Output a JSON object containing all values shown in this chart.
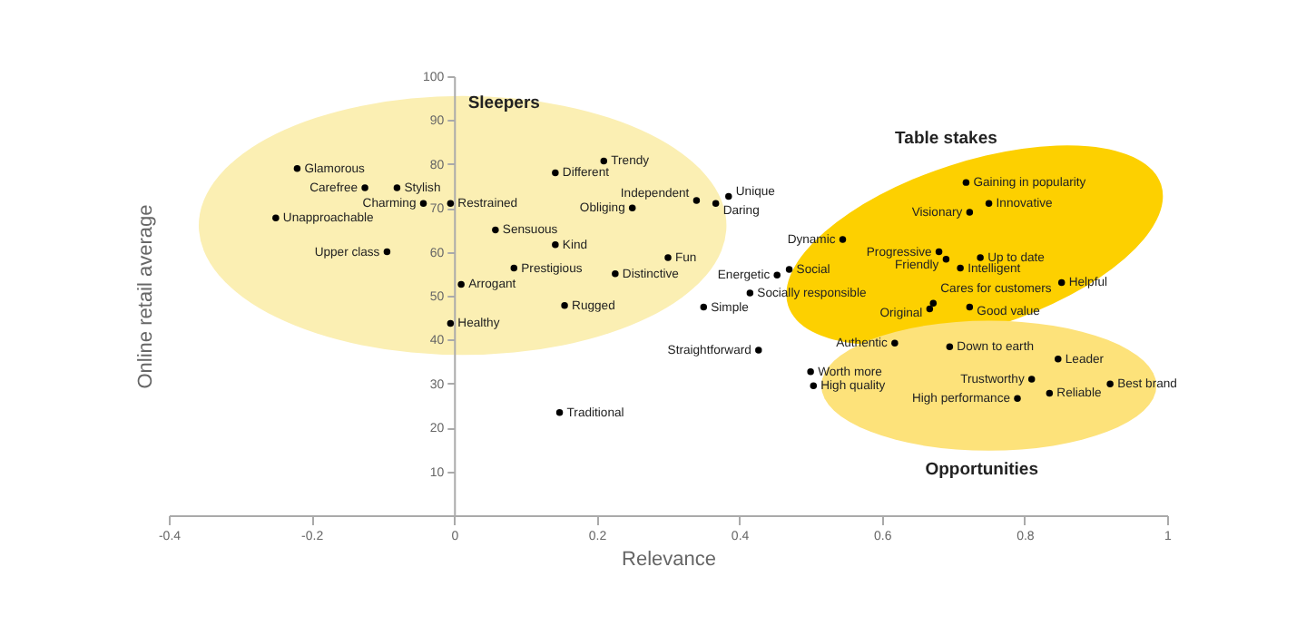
{
  "chart_data": {
    "type": "scatter",
    "xlabel": "Relevance",
    "ylabel": "Online retail average",
    "xlim": [
      -0.4,
      1
    ],
    "xticks": [
      -0.4,
      -0.2,
      0,
      0.2,
      0.4,
      0.6,
      0.8,
      1
    ],
    "ylim": [
      0,
      100
    ],
    "yticks": [
      10,
      20,
      30,
      40,
      50,
      60,
      70,
      80,
      90,
      100
    ],
    "grid": false,
    "marker": "circle",
    "legend": false,
    "series": [
      {
        "color": "#000000",
        "x": [
          -0.22,
          -0.125,
          -0.08,
          -0.043,
          -0.005,
          -0.25,
          -0.094,
          0.058,
          0.142,
          0.084,
          0.01,
          -0.005,
          0.155,
          0.142,
          0.21,
          0.34,
          0.385,
          0.367,
          0.25,
          0.3,
          0.226,
          0.35,
          0.453,
          0.47,
          0.415,
          0.427,
          0.148,
          0.545,
          0.718,
          0.75,
          0.723,
          0.68,
          0.69,
          0.738,
          0.71,
          0.852,
          0.672,
          0.667,
          0.723,
          0.618,
          0.695,
          0.847,
          0.81,
          0.92,
          0.835,
          0.79,
          0.5,
          0.504
        ],
        "values": [
          79,
          74.6,
          74.6,
          71,
          71,
          67.7,
          60,
          65,
          61.6,
          56.3,
          52.6,
          43.7,
          47.8,
          78,
          80.7,
          71.7,
          72.6,
          71,
          70,
          58.7,
          55,
          47.4,
          54.7,
          56,
          50.6,
          37.6,
          23.4,
          62.8,
          75.8,
          71,
          69,
          60,
          58.3,
          58.7,
          56.3,
          53,
          48.3,
          47,
          47.4,
          39.2,
          38.4,
          35.6,
          31,
          29.9,
          27.8,
          26.6,
          32.7,
          29.5
        ]
      }
    ],
    "annotations": [
      "Sleepers",
      "Table stakes",
      "Opportunities",
      {
        "text": "Glamorous",
        "x": -0.22,
        "y": 79
      },
      {
        "text": "Carefree",
        "x": -0.125,
        "y": 74.6
      },
      {
        "text": "Stylish",
        "x": -0.08,
        "y": 74.6
      },
      {
        "text": "Charming",
        "x": -0.043,
        "y": 71
      },
      {
        "text": "Restrained",
        "x": -0.005,
        "y": 71
      },
      {
        "text": "Unapproachable",
        "x": -0.25,
        "y": 67.7
      },
      {
        "text": "Upper class",
        "x": -0.094,
        "y": 60
      },
      {
        "text": "Sensuous",
        "x": 0.058,
        "y": 65
      },
      {
        "text": "Kind",
        "x": 0.142,
        "y": 61.6
      },
      {
        "text": "Prestigious",
        "x": 0.084,
        "y": 56.3
      },
      {
        "text": "Arrogant",
        "x": 0.01,
        "y": 52.6
      },
      {
        "text": "Healthy",
        "x": -0.005,
        "y": 43.7
      },
      {
        "text": "Rugged",
        "x": 0.155,
        "y": 47.8
      },
      {
        "text": "Different",
        "x": 0.142,
        "y": 78
      },
      {
        "text": "Trendy",
        "x": 0.21,
        "y": 80.7
      },
      {
        "text": "Independent",
        "x": 0.34,
        "y": 71.7
      },
      {
        "text": "Unique",
        "x": 0.385,
        "y": 72.6
      },
      {
        "text": "Daring",
        "x": 0.367,
        "y": 71
      },
      {
        "text": "Obliging",
        "x": 0.25,
        "y": 70
      },
      {
        "text": "Fun",
        "x": 0.3,
        "y": 58.7
      },
      {
        "text": "Distinctive",
        "x": 0.226,
        "y": 55
      },
      {
        "text": "Simple",
        "x": 0.35,
        "y": 47.4
      },
      {
        "text": "Energetic",
        "x": 0.453,
        "y": 54.7
      },
      {
        "text": "Social",
        "x": 0.47,
        "y": 56
      },
      {
        "text": "Socially responsible",
        "x": 0.415,
        "y": 50.6
      },
      {
        "text": "Straightforward",
        "x": 0.427,
        "y": 37.6
      },
      {
        "text": "Traditional",
        "x": 0.148,
        "y": 23.4
      },
      {
        "text": "Dynamic",
        "x": 0.545,
        "y": 62.8
      },
      {
        "text": "Gaining in popularity",
        "x": 0.718,
        "y": 75.8
      },
      {
        "text": "Innovative",
        "x": 0.75,
        "y": 71
      },
      {
        "text": "Visionary",
        "x": 0.723,
        "y": 69
      },
      {
        "text": "Progressive",
        "x": 0.68,
        "y": 60
      },
      {
        "text": "Friendly",
        "x": 0.69,
        "y": 58.3
      },
      {
        "text": "Up to date",
        "x": 0.738,
        "y": 58.7
      },
      {
        "text": "Intelligent",
        "x": 0.71,
        "y": 56.3
      },
      {
        "text": "Helpful",
        "x": 0.852,
        "y": 53
      },
      {
        "text": "Cares for customers",
        "x": 0.672,
        "y": 48.3
      },
      {
        "text": "Original",
        "x": 0.667,
        "y": 47
      },
      {
        "text": "Good value",
        "x": 0.723,
        "y": 47.4
      },
      {
        "text": "Authentic",
        "x": 0.618,
        "y": 39.2
      },
      {
        "text": "Down to earth",
        "x": 0.695,
        "y": 38.4
      },
      {
        "text": "Leader",
        "x": 0.847,
        "y": 35.6
      },
      {
        "text": "Trustworthy",
        "x": 0.81,
        "y": 31
      },
      {
        "text": "Best brand",
        "x": 0.92,
        "y": 29.9
      },
      {
        "text": "Reliable",
        "x": 0.835,
        "y": 27.8
      },
      {
        "text": "High performance",
        "x": 0.79,
        "y": 26.6
      },
      {
        "text": "Worth more",
        "x": 0.5,
        "y": 32.7
      },
      {
        "text": "High quality",
        "x": 0.504,
        "y": 29.5
      }
    ]
  }
}
